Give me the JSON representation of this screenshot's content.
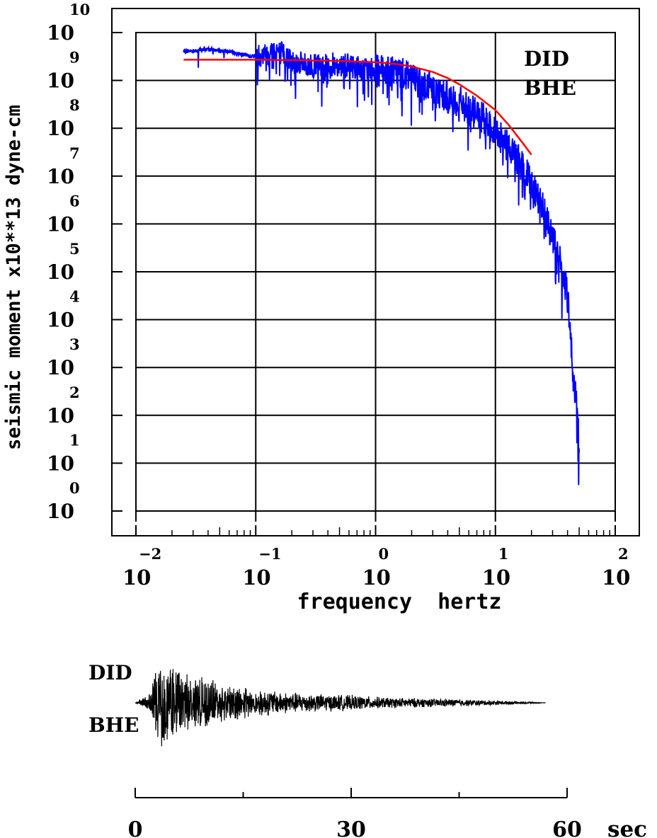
{
  "chart_data": [
    {
      "type": "line",
      "title": "",
      "xlabel": "frequency  hertz",
      "ylabel": "seismic moment x10**13 dyne-cm",
      "x_scale": "log",
      "y_scale": "log",
      "xlim": [
        0.01,
        100
      ],
      "ylim": [
        1,
        10000000000
      ],
      "grid": true,
      "annotation": [
        "DID",
        "BHE"
      ],
      "x_ticks": [
        {
          "base": "10",
          "exp": "−2"
        },
        {
          "base": "10",
          "exp": "−1"
        },
        {
          "base": "10",
          "exp": "0"
        },
        {
          "base": "10",
          "exp": "1"
        },
        {
          "base": "10",
          "exp": "2"
        }
      ],
      "y_ticks": [
        {
          "base": "10",
          "exp": "0"
        },
        {
          "base": "10",
          "exp": "1"
        },
        {
          "base": "10",
          "exp": "2"
        },
        {
          "base": "10",
          "exp": "3"
        },
        {
          "base": "10",
          "exp": "4"
        },
        {
          "base": "10",
          "exp": "5"
        },
        {
          "base": "10",
          "exp": "6"
        },
        {
          "base": "10",
          "exp": "7"
        },
        {
          "base": "10",
          "exp": "8"
        },
        {
          "base": "10",
          "exp": "9"
        },
        {
          "base": "10",
          "exp": "10"
        }
      ],
      "series": [
        {
          "color": "#0000ff",
          "style": "noisy spectrum",
          "x": [
            0.025,
            0.04,
            0.06,
            0.09,
            0.12,
            0.15,
            0.2,
            0.3,
            0.5,
            0.8,
            1.0,
            1.3,
            1.7,
            2.2,
            3.0,
            4.0,
            5.0,
            6.0,
            8.0,
            10.0,
            13.0,
            16.0,
            20.0,
            25.0,
            30.0,
            35.0,
            40.0,
            45.0,
            50.0
          ],
          "y": [
            4000000000,
            4500000000,
            4000000000,
            3200000000,
            3500000000,
            4500000000,
            2500000000,
            2000000000,
            2200000000,
            1800000000,
            1600000000,
            1400000000,
            1500000000,
            1000000000,
            700000000,
            450000000,
            350000000,
            250000000,
            150000000,
            80000000,
            40000000,
            20000000,
            8000000,
            2000000,
            500000,
            150000,
            30000,
            800,
            30
          ]
        },
        {
          "color": "#ff0000",
          "style": "model fit",
          "x": [
            0.025,
            0.05,
            0.1,
            0.2,
            0.5,
            1.0,
            1.5,
            2.0,
            3.0,
            4.0,
            5.0,
            7.0,
            10.0,
            13.0,
            17.0,
            20.0
          ],
          "y": [
            2700000000,
            2700000000,
            2700000000,
            2650000000,
            2550000000,
            2400000000,
            2200000000,
            1950000000,
            1500000000,
            1120000000,
            830000000,
            480000000,
            240000000,
            115000000,
            48000000,
            28000000
          ]
        }
      ]
    },
    {
      "type": "line",
      "title": "",
      "label_top": "DID",
      "label_bottom": "BHE",
      "xlabel": "sec",
      "xlim": [
        0,
        60
      ],
      "x_ticks": [
        "0",
        "30",
        "60"
      ],
      "series": [
        {
          "color": "#000000",
          "style": "seismogram",
          "x": [
            0,
            2,
            3,
            4,
            5,
            6,
            8,
            10,
            12,
            15,
            18,
            20,
            25,
            30,
            35,
            40,
            45,
            50,
            55,
            57
          ],
          "envelope": [
            0,
            0.2,
            0.8,
            1.0,
            0.95,
            0.8,
            0.6,
            0.55,
            0.45,
            0.35,
            0.3,
            0.25,
            0.2,
            0.17,
            0.12,
            0.1,
            0.08,
            0.05,
            0.02,
            0
          ]
        }
      ]
    }
  ]
}
